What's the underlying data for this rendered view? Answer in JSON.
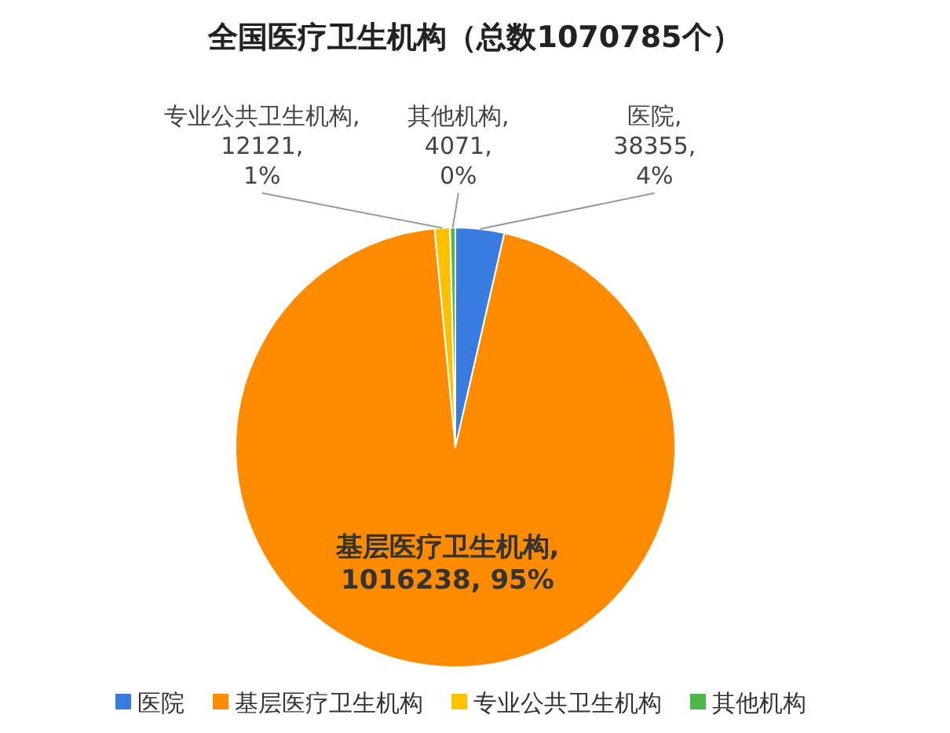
{
  "chart_data": {
    "type": "pie",
    "title": "全国医疗卫生机构（总数1070785个）",
    "categories": [
      "医院",
      "基层医疗卫生机构",
      "专业公共卫生机构",
      "其他机构"
    ],
    "values": [
      38355,
      1016238,
      12121,
      4071
    ],
    "colors": [
      "#3a7be0",
      "#ff8c00",
      "#ffc000",
      "#4cb848"
    ],
    "value_labels": [
      "医院, 38355, 4%",
      "基层医疗卫生机构, 1016238, 95%",
      "专业公共卫生机构, 12121, 1%",
      "其他机构, 4071, 0%"
    ],
    "legend": "bottom"
  }
}
